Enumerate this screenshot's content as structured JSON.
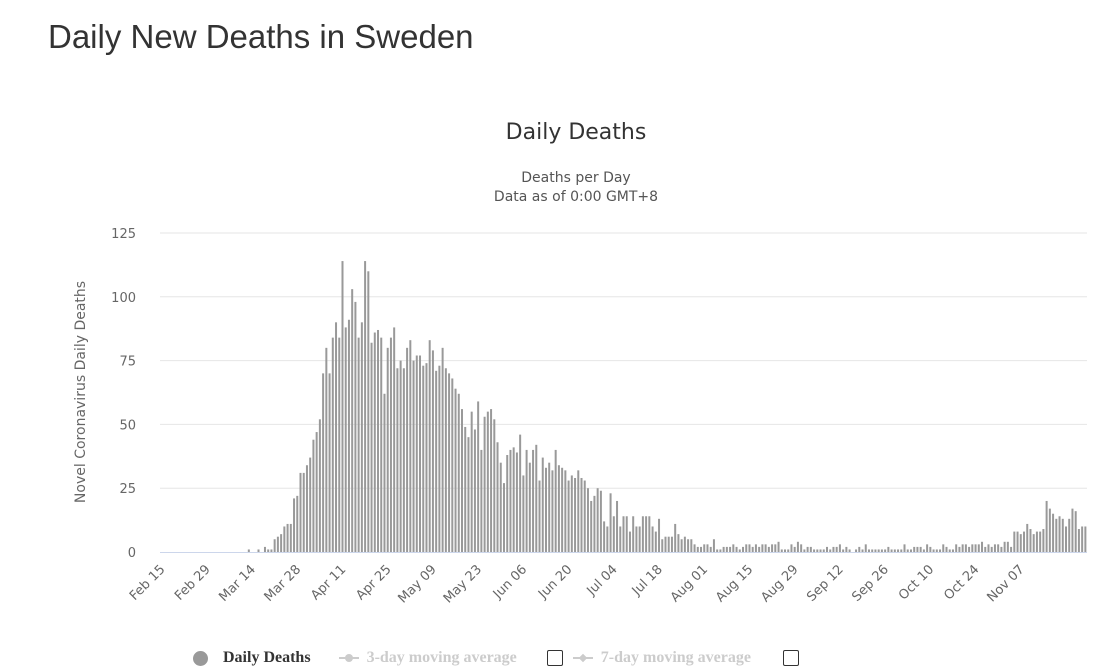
{
  "page": {
    "title": "Daily New Deaths in Sweden"
  },
  "legend": [
    {
      "label": "Daily Deaths",
      "active": true
    },
    {
      "label": "3-day moving average",
      "active": false,
      "checked": false
    },
    {
      "label": "7-day moving average",
      "active": false,
      "checked": false
    }
  ],
  "colors": {
    "bar": "#999999",
    "grid": "#e6e6e6",
    "axis": "#ccd6eb"
  },
  "chart_data": {
    "type": "bar",
    "title": "Daily Deaths",
    "subtitle_lines": [
      "Deaths per Day",
      "Data as of 0:00 GMT+8"
    ],
    "ylabel": "Novel Coronavirus Daily Deaths",
    "xlabel": "",
    "ylim": [
      0,
      125
    ],
    "yticks": [
      0,
      25,
      50,
      75,
      100,
      125
    ],
    "start_date": "2020-02-15",
    "x_tick_labels": [
      "Feb 15",
      "Feb 29",
      "Mar 14",
      "Mar 28",
      "Apr 11",
      "Apr 25",
      "May 09",
      "May 23",
      "Jun 06",
      "Jun 20",
      "Jul 04",
      "Jul 18",
      "Aug 01",
      "Aug 15",
      "Aug 29",
      "Sep 12",
      "Sep 26",
      "Oct 10",
      "Oct 24",
      "Nov 07"
    ],
    "x_tick_step_days": 14,
    "series": [
      {
        "name": "Daily Deaths",
        "values": [
          0,
          0,
          0,
          0,
          0,
          0,
          0,
          0,
          0,
          0,
          0,
          0,
          0,
          0,
          0,
          0,
          0,
          0,
          0,
          0,
          0,
          0,
          0,
          0,
          0,
          0,
          0,
          1,
          0,
          0,
          1,
          0,
          2,
          1,
          1,
          5,
          6,
          7,
          10,
          11,
          11,
          21,
          22,
          31,
          31,
          34,
          37,
          44,
          47,
          52,
          70,
          80,
          70,
          84,
          90,
          84,
          114,
          88,
          91,
          103,
          98,
          84,
          90,
          114,
          110,
          82,
          86,
          87,
          84,
          62,
          80,
          84,
          88,
          72,
          75,
          72,
          80,
          83,
          75,
          77,
          77,
          73,
          74,
          83,
          79,
          71,
          73,
          80,
          72,
          70,
          68,
          64,
          62,
          56,
          49,
          45,
          55,
          48,
          59,
          40,
          53,
          55,
          56,
          52,
          43,
          35,
          27,
          38,
          40,
          41,
          39,
          46,
          30,
          40,
          35,
          40,
          42,
          28,
          37,
          33,
          35,
          32,
          40,
          34,
          33,
          32,
          28,
          30,
          29,
          32,
          29,
          28,
          25,
          20,
          22,
          25,
          24,
          12,
          10,
          23,
          14,
          20,
          10,
          14,
          14,
          8,
          14,
          10,
          10,
          14,
          14,
          14,
          10,
          8,
          13,
          5,
          6,
          6,
          6,
          11,
          7,
          5,
          6,
          5,
          5,
          3,
          2,
          2,
          3,
          3,
          2,
          5,
          1,
          1,
          2,
          2,
          2,
          3,
          2,
          1,
          2,
          3,
          3,
          2,
          3,
          2,
          3,
          3,
          2,
          3,
          3,
          4,
          1,
          1,
          1,
          3,
          2,
          4,
          3,
          1,
          2,
          2,
          1,
          1,
          1,
          1,
          2,
          1,
          2,
          2,
          3,
          1,
          2,
          1,
          0,
          1,
          2,
          1,
          3,
          1,
          1,
          1,
          1,
          1,
          1,
          2,
          1,
          1,
          1,
          1,
          3,
          1,
          1,
          2,
          2,
          2,
          1,
          3,
          2,
          1,
          1,
          1,
          3,
          2,
          1,
          1,
          3,
          2,
          3,
          3,
          2,
          3,
          3,
          3,
          4,
          2,
          3,
          2,
          3,
          3,
          2,
          4,
          4,
          2,
          8,
          8,
          7,
          8,
          11,
          9,
          7,
          8,
          8,
          9,
          20,
          17,
          15,
          13,
          14,
          13,
          10,
          13,
          17,
          16,
          9,
          10,
          10
        ]
      }
    ]
  }
}
